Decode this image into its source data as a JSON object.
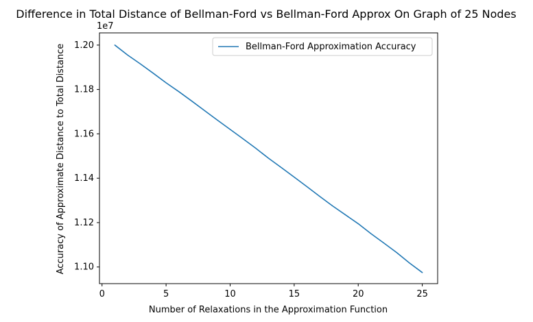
{
  "chart_data": {
    "type": "line",
    "title": "Difference in Total Distance of Bellman-Ford vs Bellman-Ford Approx On Graph of 25 Nodes",
    "xlabel": "Number of Relaxations in the Approximation Function",
    "ylabel": "Accuracy of Approximate Distance to Total Distance",
    "y_offset_label": "1e7",
    "xlim": [
      -0.2,
      26.2
    ],
    "ylim": [
      10925000,
      12055000
    ],
    "x_ticks": [
      0,
      5,
      10,
      15,
      20,
      25
    ],
    "x_tick_labels": [
      "0",
      "5",
      "10",
      "15",
      "20",
      "25"
    ],
    "y_ticks": [
      11000000,
      11200000,
      11400000,
      11600000,
      11800000,
      12000000
    ],
    "y_tick_labels": [
      "1.10",
      "1.12",
      "1.14",
      "1.16",
      "1.18",
      "1.20"
    ],
    "grid": false,
    "legend_position": "top-right",
    "series": [
      {
        "name": "Bellman-Ford Approximation Accuracy",
        "color": "#1f77b4",
        "x": [
          1,
          2,
          3,
          4,
          5,
          6,
          7,
          8,
          9,
          10,
          11,
          12,
          13,
          14,
          15,
          16,
          17,
          18,
          19,
          20,
          21,
          22,
          23,
          24,
          25
        ],
        "y": [
          12000000,
          11955000,
          11915000,
          11873000,
          11830000,
          11790000,
          11748000,
          11705000,
          11662000,
          11620000,
          11578000,
          11535000,
          11490000,
          11448000,
          11405000,
          11362000,
          11318000,
          11275000,
          11235000,
          11195000,
          11150000,
          11108000,
          11065000,
          11018000,
          10975000
        ]
      }
    ]
  }
}
